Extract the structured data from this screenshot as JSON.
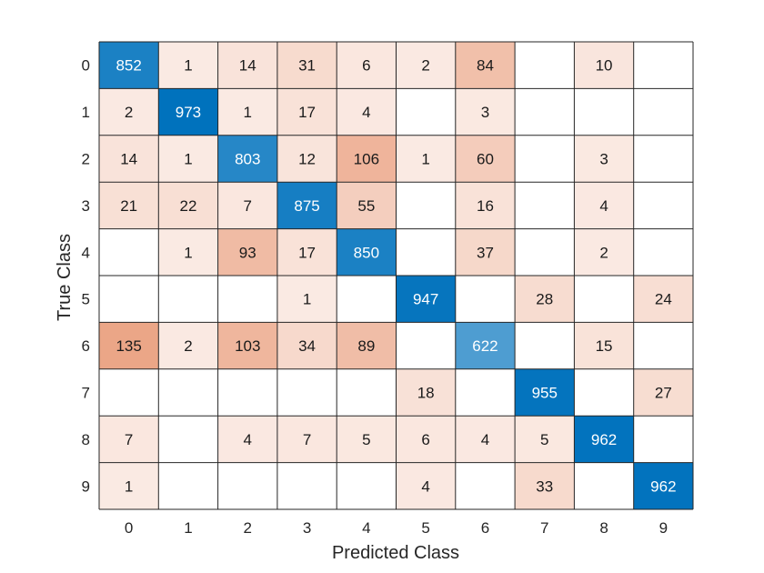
{
  "chart_data": {
    "type": "heatmap",
    "xlabel": "Predicted Class",
    "ylabel": "True Class",
    "x_categories": [
      "0",
      "1",
      "2",
      "3",
      "4",
      "5",
      "6",
      "7",
      "8",
      "9"
    ],
    "y_categories": [
      "0",
      "1",
      "2",
      "3",
      "4",
      "5",
      "6",
      "7",
      "8",
      "9"
    ],
    "matrix": [
      [
        852,
        1,
        14,
        31,
        6,
        2,
        84,
        null,
        10,
        null
      ],
      [
        2,
        973,
        1,
        17,
        4,
        null,
        3,
        null,
        null,
        null
      ],
      [
        14,
        1,
        803,
        12,
        106,
        1,
        60,
        null,
        3,
        null
      ],
      [
        21,
        22,
        7,
        875,
        55,
        null,
        16,
        null,
        4,
        null
      ],
      [
        null,
        1,
        93,
        17,
        850,
        null,
        37,
        null,
        2,
        null
      ],
      [
        null,
        null,
        null,
        1,
        null,
        947,
        null,
        28,
        null,
        24
      ],
      [
        135,
        2,
        103,
        34,
        89,
        null,
        622,
        null,
        15,
        null
      ],
      [
        null,
        null,
        null,
        null,
        null,
        18,
        null,
        955,
        null,
        27
      ],
      [
        7,
        null,
        4,
        7,
        5,
        6,
        4,
        5,
        962,
        null
      ],
      [
        1,
        null,
        null,
        null,
        null,
        4,
        null,
        33,
        null,
        962
      ]
    ],
    "colors": {
      "diagonal_dark": "#0072bd",
      "diagonal_light": "#ffffff",
      "offdiag_dark": "#d95319",
      "offdiag_light": "#ffffff",
      "grid": "#262626",
      "text_dark": "#1a1a1a",
      "text_light": "#ffffff"
    }
  }
}
